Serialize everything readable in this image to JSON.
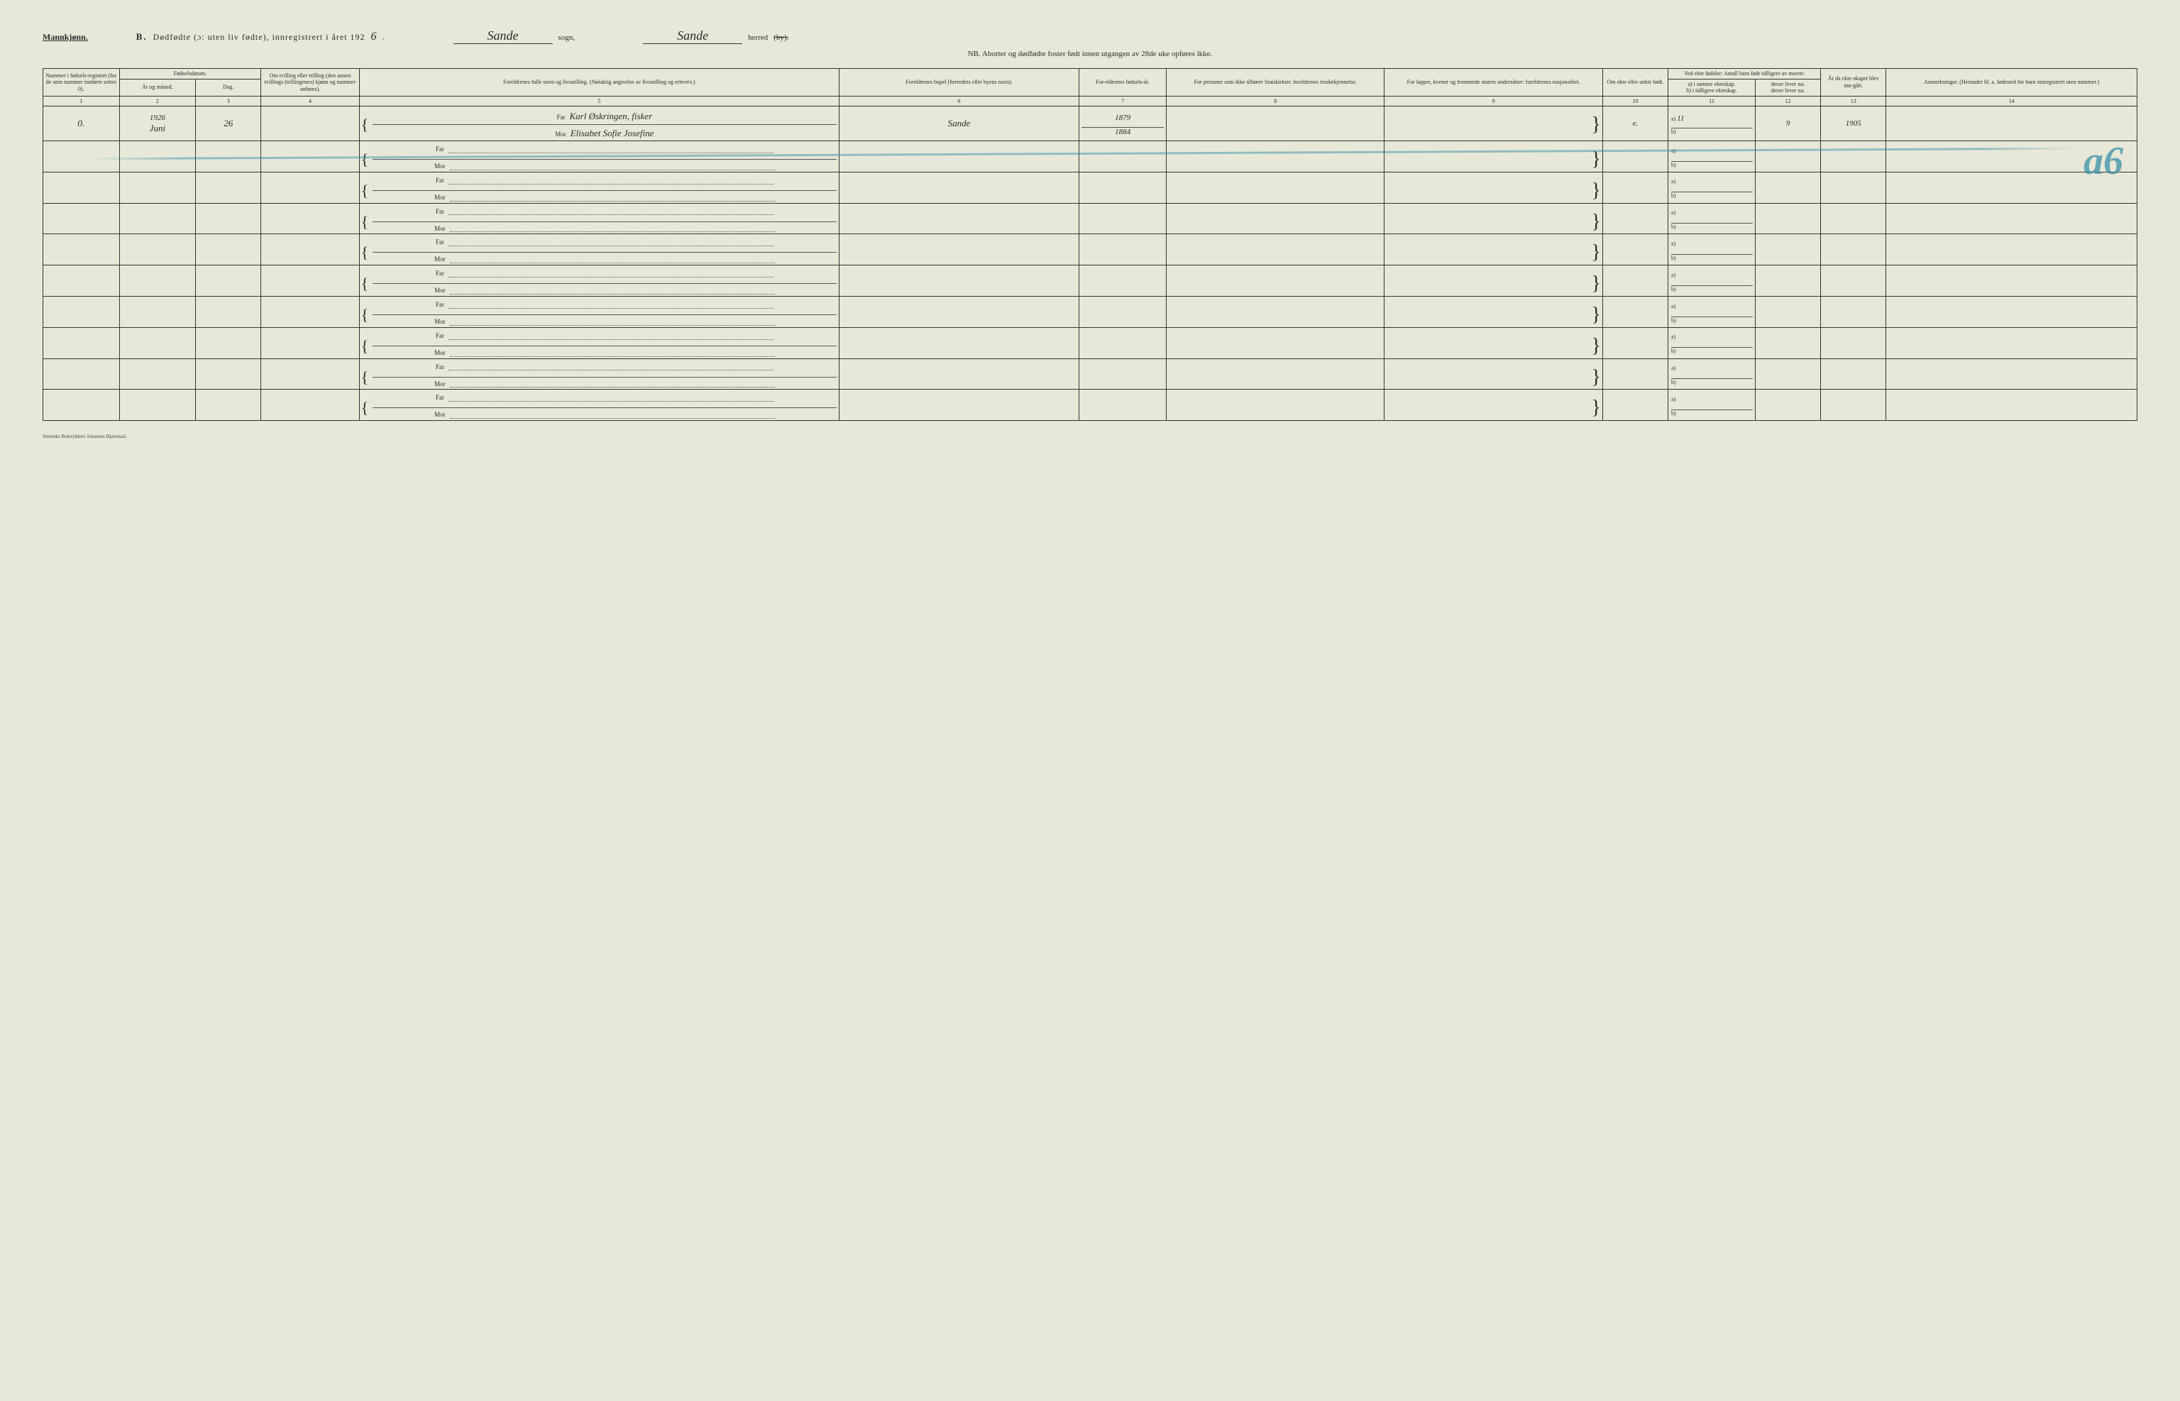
{
  "header": {
    "gender": "Mannkjønn.",
    "section_letter": "B.",
    "title_main": "Dødfødte (ɔ: uten liv fødte), innregistrert i året 192",
    "year_suffix": "6",
    "sogn_value": "Sande",
    "sogn_label": "sogn,",
    "herred_value": "Sande",
    "herred_label": "herred",
    "herred_struck": "(by).",
    "nb": "NB.  Aborter og dødfødte foster født innen utgangen av 28de uke opføres ikke."
  },
  "columns": {
    "c1": "Nummer i fødsels-registret (for de uten nummer innførte settes 0).",
    "c2_group": "Fødselsdatum.",
    "c2a": "År og måned.",
    "c2b": "Dag.",
    "c4": "Om tvilling eller trilling (den annen tvillings (trillingenes) kjønn og nummer anføres).",
    "c5": "Foreldrenes fulle navn og livsstilling. (Nøiaktig angivelse av livsstilling og erhverv.)",
    "c6": "Foreldrenes bopel (herredets eller byens navn).",
    "c7": "For-eldrenes fødsels-år.",
    "c8": "For personer som ikke tilhører Statskirken: foreldrenes trosbekjennelse.",
    "c9": "For lapper, kvener og fremmede staters undersåtter: foreldrenes nasjonalitet.",
    "c10": "Om ekte eller uekte født.",
    "c11_group": "Ved ekte fødsler: Antall barn født tidligere av moren:",
    "c11a": "a) i samme ekteskap.",
    "c11a2": "b) i tidligere ekteskap.",
    "c11b": "derav lever nu.",
    "c11b2": "derav lever nu.",
    "c13": "År da ekte-skapet blev inn-gått.",
    "c14": "Anmerkninger. (Herunder bl. a. fødested for barn innregistrert uten nummer.)"
  },
  "colnums": [
    "1",
    "2",
    "3",
    "4",
    "5",
    "6",
    "7",
    "8",
    "9",
    "10",
    "11",
    "12",
    "13",
    "14"
  ],
  "labels": {
    "far": "Far",
    "mor": "Mor",
    "a": "a)",
    "b": "b)"
  },
  "entry": {
    "reg_no": "0.",
    "year_line": "1926",
    "month": "Juni",
    "day": "26",
    "far_name": "Karl Øskringen, fisker",
    "mor_name": "Elisabet Sofie Josefine",
    "bopel": "Sande",
    "far_year": "1879",
    "mor_year": "1884",
    "ekte": "e.",
    "col11a": "11",
    "col12": "9",
    "col13": "1905"
  },
  "crayon": "a6",
  "footer": "Steenske Boktrykkeri Johannes Bjørnstad."
}
